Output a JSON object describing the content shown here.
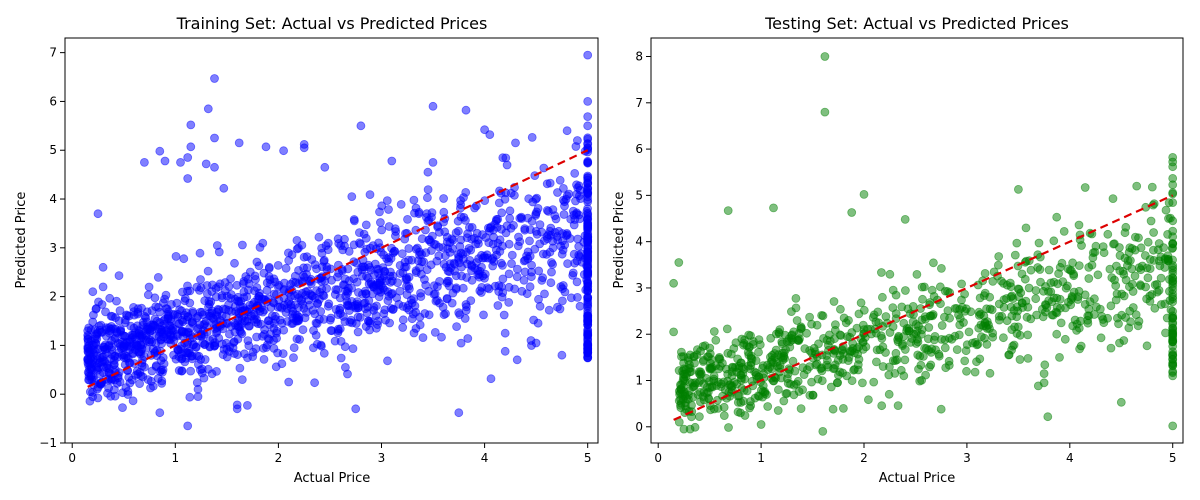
{
  "chart_data": [
    {
      "type": "scatter",
      "title": "Training Set: Actual vs Predicted Prices",
      "xlabel": "Actual Price",
      "ylabel": "Predicted Price",
      "xlim": [
        -0.07,
        5.1
      ],
      "ylim": [
        -1.0,
        7.3
      ],
      "xticks": [
        0,
        1,
        2,
        3,
        4,
        5
      ],
      "yticks": [
        -1,
        0,
        1,
        2,
        3,
        4,
        5,
        6,
        7
      ],
      "color": "#0000ff",
      "point_alpha": 0.5,
      "reference_line": {
        "from": [
          0.15,
          0.15
        ],
        "to": [
          5.0,
          5.0
        ],
        "color": "#dd0000",
        "style": "dashed"
      },
      "bulk_trend": {
        "intercept": 0.7,
        "slope": 0.55,
        "noise_sd": 0.55,
        "x_range": [
          0.15,
          5.0
        ],
        "count": 1500
      },
      "capped_column": {
        "x": 5.0,
        "y_range": [
          0.7,
          5.75
        ],
        "count": 160
      },
      "points": [
        [
          0.15,
          1.3
        ],
        [
          0.15,
          0.7
        ],
        [
          0.25,
          3.7
        ],
        [
          0.2,
          2.1
        ],
        [
          0.3,
          2.2
        ],
        [
          0.3,
          2.6
        ],
        [
          0.7,
          4.75
        ],
        [
          0.85,
          4.98
        ],
        [
          0.9,
          4.78
        ],
        [
          1.05,
          4.75
        ],
        [
          1.12,
          4.85
        ],
        [
          1.12,
          4.42
        ],
        [
          1.15,
          5.52
        ],
        [
          1.15,
          5.07
        ],
        [
          1.3,
          4.72
        ],
        [
          1.38,
          4.65
        ],
        [
          1.32,
          5.85
        ],
        [
          1.38,
          6.47
        ],
        [
          1.38,
          5.25
        ],
        [
          1.47,
          4.22
        ],
        [
          1.62,
          5.15
        ],
        [
          1.88,
          5.07
        ],
        [
          2.05,
          4.99
        ],
        [
          2.25,
          5.05
        ],
        [
          2.25,
          5.12
        ],
        [
          2.45,
          4.65
        ],
        [
          2.8,
          5.5
        ],
        [
          3.1,
          4.78
        ],
        [
          3.45,
          4.55
        ],
        [
          3.5,
          4.75
        ],
        [
          3.5,
          5.9
        ],
        [
          3.82,
          5.82
        ],
        [
          4.0,
          5.42
        ],
        [
          4.05,
          5.32
        ],
        [
          4.3,
          5.15
        ],
        [
          4.8,
          5.4
        ],
        [
          4.9,
          5.2
        ],
        [
          5.0,
          6.95
        ],
        [
          5.0,
          6.0
        ],
        [
          0.85,
          -0.38
        ],
        [
          1.12,
          -0.65
        ],
        [
          1.22,
          -0.05
        ],
        [
          1.22,
          0.1
        ],
        [
          1.6,
          -0.22
        ],
        [
          1.6,
          -0.3
        ],
        [
          2.75,
          -0.3
        ],
        [
          3.75,
          -0.38
        ],
        [
          2.1,
          0.25
        ],
        [
          1.65,
          0.3
        ],
        [
          2.65,
          0.55
        ],
        [
          4.2,
          0.88
        ],
        [
          4.5,
          1.05
        ],
        [
          4.75,
          0.8
        ],
        [
          4.2,
          1.25
        ],
        [
          4.45,
          1.1
        ]
      ]
    },
    {
      "type": "scatter",
      "title": "Testing Set: Actual vs Predicted Prices",
      "xlabel": "Actual Price",
      "ylabel": "Predicted Price",
      "xlim": [
        -0.07,
        5.1
      ],
      "ylim": [
        -0.35,
        8.4
      ],
      "xticks": [
        0,
        1,
        2,
        3,
        4,
        5
      ],
      "yticks": [
        0,
        1,
        2,
        3,
        4,
        5,
        6,
        7,
        8
      ],
      "color": "#008000",
      "point_alpha": 0.5,
      "reference_line": {
        "from": [
          0.15,
          0.15
        ],
        "to": [
          5.0,
          5.0
        ],
        "color": "#dd0000",
        "style": "dashed"
      },
      "bulk_trend": {
        "intercept": 0.75,
        "slope": 0.55,
        "noise_sd": 0.5,
        "x_range": [
          0.2,
          5.0
        ],
        "count": 900
      },
      "capped_column": {
        "x": 5.0,
        "y_range": [
          1.1,
          5.8
        ],
        "count": 60
      },
      "points": [
        [
          0.15,
          3.1
        ],
        [
          0.2,
          3.55
        ],
        [
          0.15,
          2.05
        ],
        [
          0.68,
          4.67
        ],
        [
          1.12,
          4.73
        ],
        [
          1.62,
          8.0
        ],
        [
          1.62,
          6.8
        ],
        [
          2.0,
          5.02
        ],
        [
          1.88,
          4.63
        ],
        [
          2.4,
          4.48
        ],
        [
          3.5,
          5.13
        ],
        [
          4.15,
          5.17
        ],
        [
          4.42,
          4.93
        ],
        [
          4.65,
          5.2
        ],
        [
          4.82,
          4.82
        ],
        [
          5.0,
          5.82
        ],
        [
          5.0,
          5.72
        ],
        [
          5.0,
          5.62
        ],
        [
          5.0,
          0.02
        ],
        [
          5.0,
          1.1
        ],
        [
          5.0,
          1.38
        ],
        [
          4.5,
          0.53
        ],
        [
          1.6,
          -0.1
        ],
        [
          1.7,
          0.38
        ],
        [
          2.75,
          0.38
        ],
        [
          0.8,
          0.3
        ],
        [
          1.0,
          0.05
        ],
        [
          0.4,
          0.22
        ],
        [
          3.75,
          0.95
        ],
        [
          3.75,
          1.15
        ],
        [
          3.9,
          1.5
        ],
        [
          4.4,
          1.7
        ],
        [
          4.75,
          1.75
        ]
      ]
    }
  ]
}
